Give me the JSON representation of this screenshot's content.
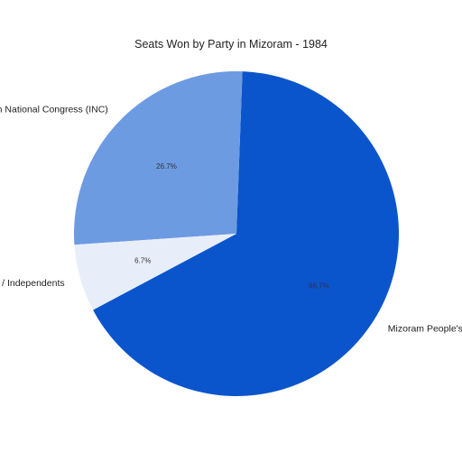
{
  "chart_data": {
    "type": "pie",
    "title": "Seats Won by Party in Mizoram - 1984",
    "slices": [
      {
        "label": "Mizoram People's Conference (MPC)",
        "value": 66.7,
        "display": "66.7%",
        "color": "#0b55cc"
      },
      {
        "label": "Indian National Congress (INC)",
        "value": 26.7,
        "display": "26.7%",
        "color": "#6d9be2"
      },
      {
        "label": "Others / Independents",
        "value": 6.7,
        "display": "6.7%",
        "color": "#e8eef9"
      }
    ],
    "start_angle_deg": 208,
    "direction": "counterclockwise",
    "legend": "none"
  }
}
